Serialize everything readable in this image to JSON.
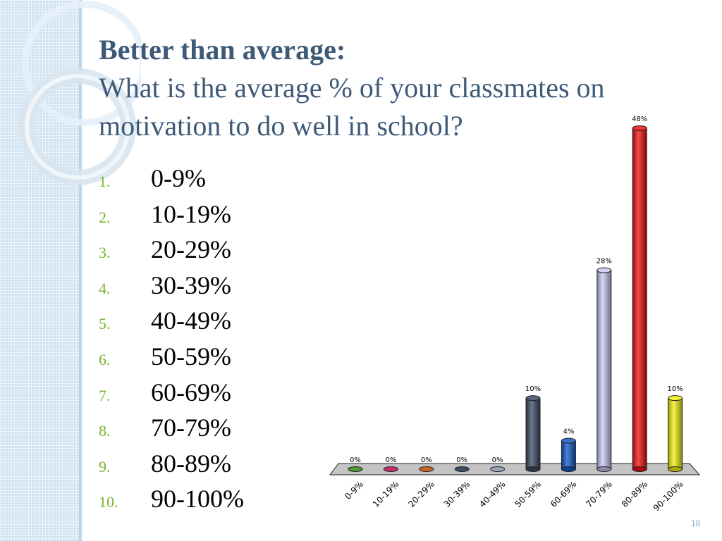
{
  "slide": {
    "title_bold": "Better than average:",
    "title_rest": "What is the average % of your classmates on motivation to do well in school?",
    "title_line2": "What is the average % of your classmates on",
    "title_line3": "motivation to do well in school?",
    "page_number": "18"
  },
  "options": [
    {
      "number": "1.",
      "label": "0-9%"
    },
    {
      "number": "2.",
      "label": "10-19%"
    },
    {
      "number": "3.",
      "label": "20-29%"
    },
    {
      "number": "4.",
      "label": "30-39%"
    },
    {
      "number": "5.",
      "label": "40-49%"
    },
    {
      "number": "6.",
      "label": "50-59%"
    },
    {
      "number": "7.",
      "label": "60-69%"
    },
    {
      "number": "8.",
      "label": "70-79%"
    },
    {
      "number": "9.",
      "label": "80-89%"
    },
    {
      "number": "10.",
      "label": "90-100%"
    }
  ],
  "chart_data": {
    "type": "bar",
    "style": "3d-cylinder",
    "categories": [
      "0-9%",
      "10-19%",
      "20-29%",
      "30-39%",
      "40-49%",
      "50-59%",
      "60-69%",
      "70-79%",
      "80-89%",
      "90-100%"
    ],
    "values": [
      0,
      0,
      0,
      0,
      0,
      10,
      4,
      28,
      48,
      10
    ],
    "data_labels": [
      "0%",
      "0%",
      "0%",
      "0%",
      "0%",
      "10%",
      "4%",
      "28%",
      "48%",
      "10%"
    ],
    "colors": [
      "#4e9a34",
      "#c0306e",
      "#c8681e",
      "#3a4e66",
      "#9aa8bc",
      "#3a4a66",
      "#1058c8",
      "#c8c8f2",
      "#f01010",
      "#f2f210"
    ],
    "ylim": [
      0,
      48
    ],
    "grid": false,
    "title": "",
    "xlabel": "",
    "ylabel": ""
  }
}
